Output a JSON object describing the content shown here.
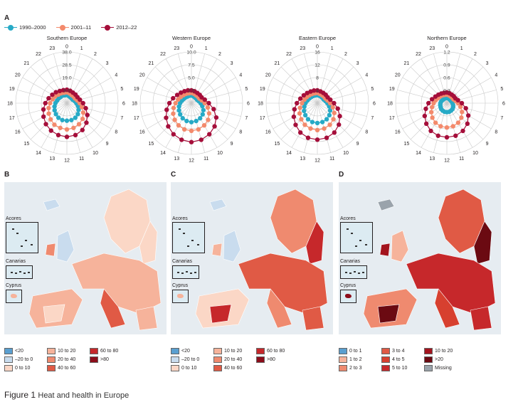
{
  "panel_a": {
    "letter": "A",
    "legend": [
      {
        "label": "1990–2000",
        "color": "#27aac6"
      },
      {
        "label": "2001–11",
        "color": "#f38a6c"
      },
      {
        "label": "2012–22",
        "color": "#a50e3a"
      }
    ],
    "hours": [
      "0",
      "1",
      "2",
      "3",
      "4",
      "5",
      "6",
      "7",
      "8",
      "9",
      "10",
      "11",
      "12",
      "13",
      "14",
      "15",
      "16",
      "17",
      "18",
      "19",
      "20",
      "21",
      "22",
      "23"
    ]
  },
  "chart_data": [
    {
      "type": "radar",
      "title": "Southern Europe",
      "categories": [
        "0",
        "1",
        "2",
        "3",
        "4",
        "5",
        "6",
        "7",
        "8",
        "9",
        "10",
        "11",
        "12",
        "13",
        "14",
        "15",
        "16",
        "17",
        "18",
        "19",
        "20",
        "21",
        "22",
        "23"
      ],
      "ring_labels": [
        "9.5",
        "19.0",
        "28.5",
        "38.0"
      ],
      "rmax": 38.0,
      "series": [
        {
          "name": "1990–2000",
          "values": [
            6,
            5.5,
            5,
            5,
            5,
            6,
            7,
            8.5,
            10,
            11.5,
            12.5,
            13,
            13,
            13,
            12.5,
            11.5,
            10.5,
            9.5,
            8.5,
            7.5,
            7,
            6.5,
            6.5,
            6
          ]
        },
        {
          "name": "2001–11",
          "values": [
            8,
            7.5,
            7,
            7,
            7,
            8,
            9.5,
            11.5,
            14,
            16.5,
            18,
            19,
            19.5,
            19,
            18.5,
            17,
            15.5,
            14,
            12.5,
            11,
            10,
            9,
            8.5,
            8
          ]
        },
        {
          "name": "2012–22",
          "values": [
            10,
            9.5,
            9,
            9,
            9,
            10,
            12,
            14.5,
            17.5,
            20.5,
            23,
            24.5,
            25,
            24.5,
            23.5,
            22,
            20,
            18,
            16,
            14,
            12.5,
            11.5,
            10.5,
            10
          ]
        }
      ]
    },
    {
      "type": "radar",
      "title": "Western Europe",
      "categories": [
        "0",
        "1",
        "2",
        "3",
        "4",
        "5",
        "6",
        "7",
        "8",
        "9",
        "10",
        "11",
        "12",
        "13",
        "14",
        "15",
        "16",
        "17",
        "18",
        "19",
        "20",
        "21",
        "22",
        "23"
      ],
      "ring_labels": [
        "2.5",
        "5.0",
        "7.5",
        "10.0"
      ],
      "rmax": 10.0,
      "series": [
        {
          "name": "1990–2000",
          "values": [
            1.5,
            1.4,
            1.3,
            1.3,
            1.3,
            1.5,
            1.8,
            2.2,
            2.7,
            3.1,
            3.4,
            3.6,
            3.7,
            3.6,
            3.4,
            3.1,
            2.8,
            2.5,
            2.2,
            1.9,
            1.7,
            1.6,
            1.5,
            1.5
          ]
        },
        {
          "name": "2001–11",
          "values": [
            2,
            1.9,
            1.8,
            1.8,
            1.8,
            2.1,
            2.6,
            3.3,
            4,
            4.6,
            5,
            5.3,
            5.4,
            5.3,
            5,
            4.6,
            4.1,
            3.6,
            3.1,
            2.7,
            2.4,
            2.2,
            2.1,
            2
          ]
        },
        {
          "name": "2012–22",
          "values": [
            2.5,
            2.4,
            2.3,
            2.3,
            2.3,
            2.7,
            3.4,
            4.5,
            5.6,
            6.4,
            7,
            7.4,
            7.6,
            7.4,
            7,
            6.4,
            5.7,
            5,
            4.3,
            3.7,
            3.2,
            2.9,
            2.7,
            2.6
          ]
        }
      ]
    },
    {
      "type": "radar",
      "title": "Eastern Europe",
      "categories": [
        "0",
        "1",
        "2",
        "3",
        "4",
        "5",
        "6",
        "7",
        "8",
        "9",
        "10",
        "11",
        "12",
        "13",
        "14",
        "15",
        "16",
        "17",
        "18",
        "19",
        "20",
        "21",
        "22",
        "23"
      ],
      "ring_labels": [
        "4",
        "8",
        "12",
        "16"
      ],
      "rmax": 16,
      "series": [
        {
          "name": "1990–2000",
          "values": [
            2.5,
            2.4,
            2.3,
            2.3,
            2.3,
            2.6,
            3.1,
            3.8,
            4.6,
            5.3,
            5.8,
            6.1,
            6.2,
            6.1,
            5.8,
            5.3,
            4.8,
            4.2,
            3.7,
            3.2,
            2.9,
            2.7,
            2.6,
            2.5
          ]
        },
        {
          "name": "2001–11",
          "values": [
            3.2,
            3,
            2.9,
            2.9,
            2.9,
            3.3,
            4,
            5,
            6.1,
            7.1,
            7.8,
            8.2,
            8.4,
            8.2,
            7.8,
            7.1,
            6.4,
            5.6,
            4.8,
            4.2,
            3.8,
            3.5,
            3.3,
            3.2
          ]
        },
        {
          "name": "2012–22",
          "values": [
            4,
            3.8,
            3.7,
            3.7,
            3.7,
            4.2,
            5.2,
            6.6,
            8.1,
            9.5,
            10.6,
            11.2,
            11.4,
            11.2,
            10.6,
            9.6,
            8.5,
            7.4,
            6.4,
            5.5,
            4.9,
            4.5,
            4.2,
            4.1
          ]
        }
      ]
    },
    {
      "type": "radar",
      "title": "Northern Europe",
      "categories": [
        "0",
        "1",
        "2",
        "3",
        "4",
        "5",
        "6",
        "7",
        "8",
        "9",
        "10",
        "11",
        "12",
        "13",
        "14",
        "15",
        "16",
        "17",
        "18",
        "19",
        "20",
        "21",
        "22",
        "23"
      ],
      "ring_labels": [
        "0.3",
        "0.6",
        "0.9",
        "1.2"
      ],
      "rmax": 1.2,
      "series": [
        {
          "name": "1990–2000",
          "values": [
            0.12,
            0.12,
            0.11,
            0.11,
            0.11,
            0.12,
            0.13,
            0.15,
            0.17,
            0.19,
            0.2,
            0.21,
            0.21,
            0.21,
            0.2,
            0.19,
            0.17,
            0.16,
            0.15,
            0.14,
            0.13,
            0.12,
            0.12,
            0.12
          ]
        },
        {
          "name": "2001–11",
          "values": [
            0.2,
            0.19,
            0.18,
            0.18,
            0.18,
            0.21,
            0.26,
            0.33,
            0.41,
            0.48,
            0.53,
            0.56,
            0.57,
            0.56,
            0.53,
            0.48,
            0.42,
            0.36,
            0.31,
            0.27,
            0.24,
            0.22,
            0.21,
            0.2
          ]
        },
        {
          "name": "2012–22",
          "values": [
            0.25,
            0.24,
            0.23,
            0.23,
            0.23,
            0.27,
            0.35,
            0.46,
            0.58,
            0.68,
            0.75,
            0.79,
            0.8,
            0.79,
            0.75,
            0.68,
            0.6,
            0.51,
            0.43,
            0.36,
            0.31,
            0.28,
            0.26,
            0.25
          ]
        }
      ]
    }
  ],
  "maps": [
    {
      "letter": "B",
      "insets": [
        "Acores",
        "Canarias",
        "Cyprus"
      ],
      "legend": [
        {
          "label": "<20",
          "color": "#5a9fd0"
        },
        {
          "label": "–20 to 0",
          "color": "#c9dcee"
        },
        {
          "label": "0 to 10",
          "color": "#fbd7c6"
        },
        {
          "label": "10 to 20",
          "color": "#f6b39b"
        },
        {
          "label": "20 to 40",
          "color": "#ef8a6f"
        },
        {
          "label": "40 to 60",
          "color": "#e05a45"
        },
        {
          "label": "60 to 80",
          "color": "#c6282b"
        },
        {
          "label": ">80",
          "color": "#8c0d1a"
        }
      ]
    },
    {
      "letter": "C",
      "insets": [
        "Acores",
        "Canarias",
        "Cyprus"
      ],
      "legend": [
        {
          "label": "<20",
          "color": "#5a9fd0"
        },
        {
          "label": "–20 to 0",
          "color": "#c9dcee"
        },
        {
          "label": "0 to 10",
          "color": "#fbd7c6"
        },
        {
          "label": "10 to 20",
          "color": "#f6b39b"
        },
        {
          "label": "20 to 40",
          "color": "#ef8a6f"
        },
        {
          "label": "40 to 60",
          "color": "#e05a45"
        },
        {
          "label": "60 to 80",
          "color": "#c6282b"
        },
        {
          "label": ">80",
          "color": "#8c0d1a"
        }
      ]
    },
    {
      "letter": "D",
      "insets": [
        "Acores",
        "Canarias",
        "Cyprus"
      ],
      "legend": [
        {
          "label": "0 to 1",
          "color": "#5a9fd0"
        },
        {
          "label": "1 to 2",
          "color": "#f6b39b"
        },
        {
          "label": "2 to 3",
          "color": "#ef8a6f"
        },
        {
          "label": "3 to 4",
          "color": "#e05a45"
        },
        {
          "label": "4 to 5",
          "color": "#d7402f"
        },
        {
          "label": "5 to 10",
          "color": "#c6282b"
        },
        {
          "label": "10 to 20",
          "color": "#a3141e"
        },
        {
          "label": ">20",
          "color": "#6b0a12"
        },
        {
          "label": "Missing",
          "color": "#9aa3ab"
        }
      ]
    }
  ],
  "caption": {
    "label": "Figure 1",
    "text": "Heat and health in Europe"
  }
}
